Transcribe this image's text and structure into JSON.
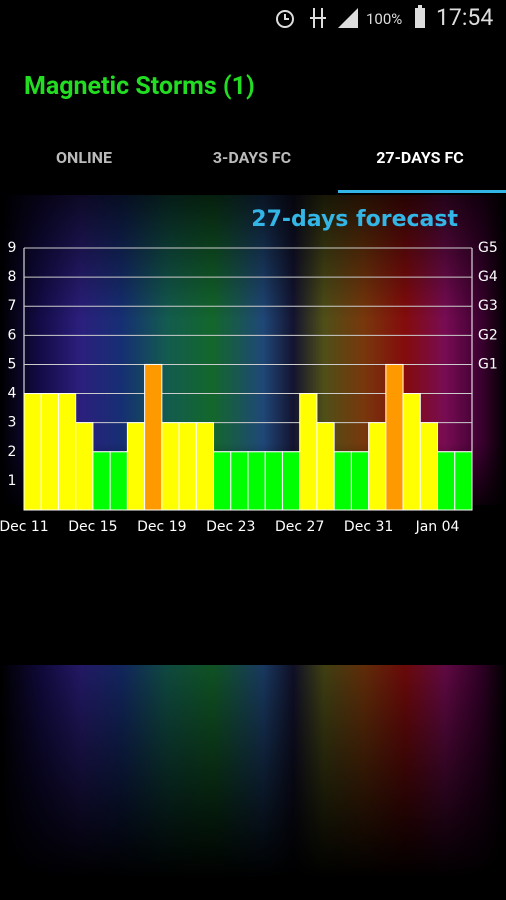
{
  "status_bar": {
    "battery": "100%",
    "time": "17:54"
  },
  "app_title": "Magnetic Storms (1)",
  "tabs": [
    "ONLINE",
    "3-DAYS FC",
    "27-DAYS FC"
  ],
  "selected_tab": 2,
  "chart_data": {
    "type": "bar",
    "title": "27-days forecast",
    "categories": [
      "Dec 11",
      null,
      null,
      null,
      "Dec 15",
      null,
      null,
      null,
      "Dec 19",
      null,
      null,
      null,
      "Dec 23",
      null,
      null,
      null,
      "Dec 27",
      null,
      null,
      null,
      "Dec 31",
      null,
      null,
      null,
      "Jan 04",
      null
    ],
    "values": [
      4,
      4,
      4,
      3,
      2,
      2,
      3,
      5,
      3,
      3,
      3,
      2,
      2,
      2,
      2,
      2,
      4,
      3,
      2,
      2,
      3,
      5,
      4,
      3,
      2,
      2
    ],
    "colors": [
      "#ffff00",
      "#ffff00",
      "#ffff00",
      "#ffff00",
      "#00ff00",
      "#00ff00",
      "#ffff00",
      "#ff9900",
      "#ffff00",
      "#ffff00",
      "#ffff00",
      "#00ff00",
      "#00ff00",
      "#00ff00",
      "#00ff00",
      "#00ff00",
      "#ffff00",
      "#ffff00",
      "#00ff00",
      "#00ff00",
      "#ffff00",
      "#ff9900",
      "#ffff00",
      "#ffff00",
      "#00ff00",
      "#00ff00"
    ],
    "ylim": [
      0,
      9
    ],
    "yticks": [
      1,
      2,
      3,
      4,
      5,
      6,
      7,
      8,
      9
    ],
    "y2lim": [
      0,
      9
    ],
    "y2ticks": [
      {
        "value": 5,
        "label": "G1"
      },
      {
        "value": 6,
        "label": "G2"
      },
      {
        "value": 7,
        "label": "G3"
      },
      {
        "value": 8,
        "label": "G4"
      },
      {
        "value": 9,
        "label": "G5"
      }
    ],
    "grid": true
  }
}
